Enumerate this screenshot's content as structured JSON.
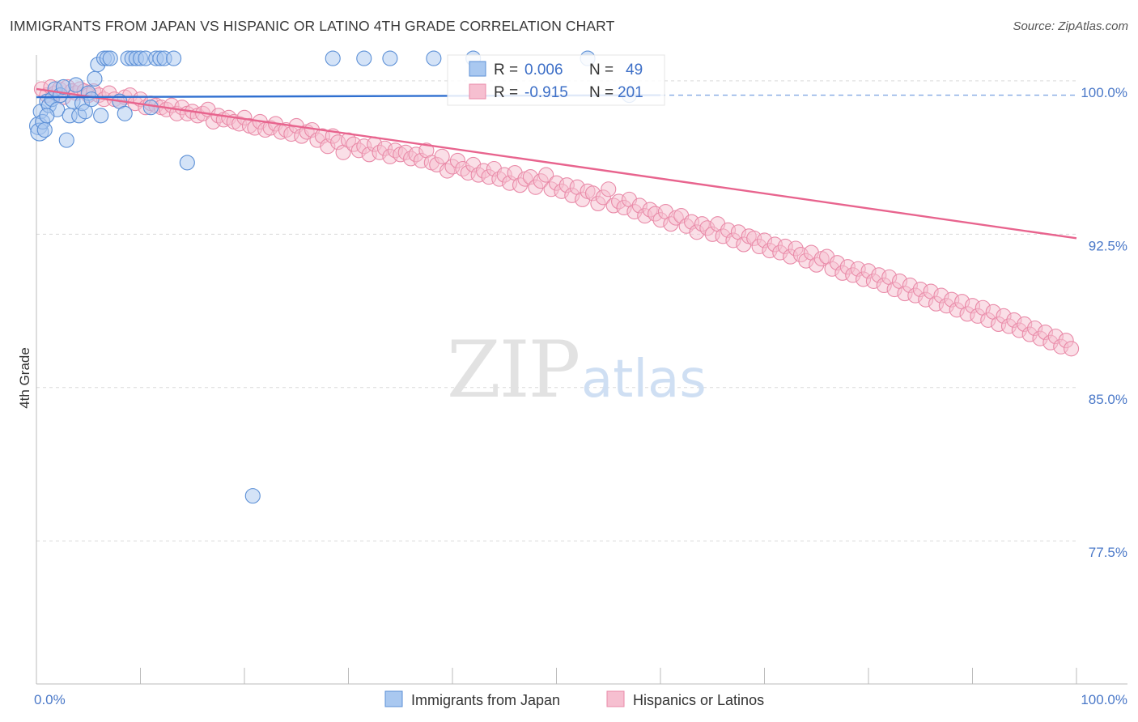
{
  "header": {
    "title": "IMMIGRANTS FROM JAPAN VS HISPANIC OR LATINO 4TH GRADE CORRELATION CHART",
    "source": "Source: ZipAtlas.com"
  },
  "watermark": {
    "part1": "ZIP",
    "part2": "atlas"
  },
  "colors": {
    "blue_fill": "#a9c8f0",
    "blue_stroke": "#5b8fd6",
    "blue_line": "#2f6fd0",
    "pink_fill": "#f6bfd0",
    "pink_stroke": "#e98aa8",
    "pink_line": "#e8648e",
    "tick_label": "#4a78c8",
    "grid": "#d9d9d9"
  },
  "stats_box": {
    "rows": [
      {
        "r_label": "R =",
        "r_value": "0.006",
        "n_label": "N =",
        "n_value": "49",
        "series": "blue"
      },
      {
        "r_label": "R =",
        "r_value": "-0.915",
        "n_label": "N =",
        "n_value": "201",
        "series": "pink"
      }
    ]
  },
  "legend": {
    "items": [
      {
        "label": "Immigrants from Japan",
        "series": "blue"
      },
      {
        "label": "Hispanics or Latinos",
        "series": "pink"
      }
    ]
  },
  "chart_data": {
    "type": "scatter",
    "ylabel": "4th Grade",
    "xlim": [
      0,
      100
    ],
    "ylim": [
      70.5,
      101.5
    ],
    "y_ticks": [
      {
        "value": 100.0,
        "label": "100.0%"
      },
      {
        "value": 92.5,
        "label": "92.5%"
      },
      {
        "value": 85.0,
        "label": "85.0%"
      },
      {
        "value": 77.5,
        "label": "77.5%"
      }
    ],
    "x_tick_labels": [
      {
        "value": 0,
        "label": "0.0%"
      },
      {
        "value": 100,
        "label": "100.0%"
      }
    ],
    "x_minor_ticks": [
      0,
      10,
      20,
      30,
      40,
      50,
      60,
      70,
      80,
      90,
      100
    ],
    "series": [
      {
        "name": "Immigrants from Japan",
        "color": "blue",
        "trend": {
          "x": [
            0,
            60
          ],
          "y": [
            99.2,
            99.3
          ],
          "dashed_extension_to": 100
        },
        "points": [
          [
            0.2,
            97.8
          ],
          [
            0.3,
            97.5
          ],
          [
            0.4,
            98.5
          ],
          [
            0.6,
            98.0
          ],
          [
            0.8,
            97.6
          ],
          [
            1.0,
            99.0
          ],
          [
            1.2,
            98.8
          ],
          [
            1.5,
            99.1
          ],
          [
            1.8,
            99.6
          ],
          [
            2.0,
            98.6
          ],
          [
            2.3,
            99.3
          ],
          [
            2.6,
            99.7
          ],
          [
            2.9,
            97.1
          ],
          [
            3.2,
            98.3
          ],
          [
            3.5,
            99.0
          ],
          [
            3.8,
            99.8
          ],
          [
            4.1,
            98.3
          ],
          [
            4.4,
            98.9
          ],
          [
            4.7,
            98.5
          ],
          [
            5.0,
            99.4
          ],
          [
            5.3,
            99.1
          ],
          [
            5.6,
            100.1
          ],
          [
            5.9,
            100.8
          ],
          [
            6.2,
            98.3
          ],
          [
            6.5,
            101.1
          ],
          [
            6.8,
            101.1
          ],
          [
            7.1,
            101.1
          ],
          [
            8.0,
            99.0
          ],
          [
            8.5,
            98.4
          ],
          [
            8.8,
            101.1
          ],
          [
            9.2,
            101.1
          ],
          [
            9.6,
            101.1
          ],
          [
            10.0,
            101.1
          ],
          [
            10.5,
            101.1
          ],
          [
            11.0,
            98.7
          ],
          [
            11.5,
            101.1
          ],
          [
            11.9,
            101.1
          ],
          [
            12.3,
            101.1
          ],
          [
            13.2,
            101.1
          ],
          [
            14.5,
            96.0
          ],
          [
            20.8,
            79.7
          ],
          [
            28.5,
            101.1
          ],
          [
            31.5,
            101.1
          ],
          [
            34.0,
            101.1
          ],
          [
            38.2,
            101.1
          ],
          [
            42.0,
            101.1
          ],
          [
            53.0,
            101.1
          ],
          [
            57.0,
            99.3
          ],
          [
            1.0,
            98.3
          ]
        ]
      },
      {
        "name": "Hispanics or Latinos",
        "color": "pink",
        "trend": {
          "x": [
            0,
            100
          ],
          "y": [
            99.6,
            92.3
          ]
        },
        "points": [
          [
            0.5,
            99.6
          ],
          [
            1.0,
            99.3
          ],
          [
            1.4,
            99.7
          ],
          [
            1.8,
            99.4
          ],
          [
            2.2,
            99.6
          ],
          [
            2.6,
            99.2
          ],
          [
            3.0,
            99.7
          ],
          [
            3.4,
            99.5
          ],
          [
            3.8,
            99.4
          ],
          [
            4.2,
            99.6
          ],
          [
            4.6,
            99.5
          ],
          [
            5.0,
            99.3
          ],
          [
            5.5,
            99.5
          ],
          [
            6.0,
            99.3
          ],
          [
            6.5,
            99.1
          ],
          [
            7.0,
            99.4
          ],
          [
            7.5,
            99.1
          ],
          [
            8.0,
            99.0
          ],
          [
            8.5,
            99.2
          ],
          [
            9.0,
            99.3
          ],
          [
            9.5,
            98.9
          ],
          [
            10.0,
            99.1
          ],
          [
            10.5,
            98.7
          ],
          [
            11.0,
            98.9
          ],
          [
            11.5,
            98.8
          ],
          [
            12.0,
            98.7
          ],
          [
            12.5,
            98.6
          ],
          [
            13.0,
            98.8
          ],
          [
            13.5,
            98.4
          ],
          [
            14.0,
            98.7
          ],
          [
            14.5,
            98.4
          ],
          [
            15.0,
            98.5
          ],
          [
            15.5,
            98.3
          ],
          [
            16.0,
            98.4
          ],
          [
            16.5,
            98.6
          ],
          [
            17.0,
            98.0
          ],
          [
            17.5,
            98.3
          ],
          [
            18.0,
            98.1
          ],
          [
            18.5,
            98.2
          ],
          [
            19.0,
            98.0
          ],
          [
            19.5,
            97.9
          ],
          [
            20.0,
            98.2
          ],
          [
            20.5,
            97.8
          ],
          [
            21.0,
            97.7
          ],
          [
            21.5,
            98.0
          ],
          [
            22.0,
            97.6
          ],
          [
            22.5,
            97.7
          ],
          [
            23.0,
            97.9
          ],
          [
            23.5,
            97.5
          ],
          [
            24.0,
            97.6
          ],
          [
            24.5,
            97.4
          ],
          [
            25.0,
            97.8
          ],
          [
            25.5,
            97.3
          ],
          [
            26.0,
            97.5
          ],
          [
            26.5,
            97.6
          ],
          [
            27.0,
            97.1
          ],
          [
            27.5,
            97.3
          ],
          [
            28.0,
            96.8
          ],
          [
            28.5,
            97.3
          ],
          [
            29.0,
            97.0
          ],
          [
            29.5,
            96.5
          ],
          [
            30.0,
            97.1
          ],
          [
            30.5,
            96.9
          ],
          [
            31.0,
            96.6
          ],
          [
            31.5,
            96.8
          ],
          [
            32.0,
            96.4
          ],
          [
            32.5,
            96.9
          ],
          [
            33.0,
            96.5
          ],
          [
            33.5,
            96.7
          ],
          [
            34.0,
            96.3
          ],
          [
            34.5,
            96.6
          ],
          [
            35.0,
            96.4
          ],
          [
            35.5,
            96.5
          ],
          [
            36.0,
            96.2
          ],
          [
            36.5,
            96.4
          ],
          [
            37.0,
            96.1
          ],
          [
            37.5,
            96.6
          ],
          [
            38.0,
            96.0
          ],
          [
            38.5,
            95.9
          ],
          [
            39.0,
            96.3
          ],
          [
            39.5,
            95.6
          ],
          [
            40.0,
            95.8
          ],
          [
            40.5,
            96.1
          ],
          [
            41.0,
            95.7
          ],
          [
            41.5,
            95.5
          ],
          [
            42.0,
            95.9
          ],
          [
            42.5,
            95.4
          ],
          [
            43.0,
            95.6
          ],
          [
            43.5,
            95.3
          ],
          [
            44.0,
            95.7
          ],
          [
            44.5,
            95.2
          ],
          [
            45.0,
            95.4
          ],
          [
            45.5,
            95.0
          ],
          [
            46.0,
            95.5
          ],
          [
            46.5,
            94.9
          ],
          [
            47.0,
            95.2
          ],
          [
            47.5,
            95.3
          ],
          [
            48.0,
            94.8
          ],
          [
            48.5,
            95.1
          ],
          [
            49.0,
            95.4
          ],
          [
            49.5,
            94.7
          ],
          [
            50.0,
            95.0
          ],
          [
            50.5,
            94.6
          ],
          [
            51.0,
            94.9
          ],
          [
            51.5,
            94.4
          ],
          [
            52.0,
            94.8
          ],
          [
            52.5,
            94.2
          ],
          [
            53.0,
            94.6
          ],
          [
            53.5,
            94.5
          ],
          [
            54.0,
            94.0
          ],
          [
            54.5,
            94.3
          ],
          [
            55.0,
            94.7
          ],
          [
            55.5,
            93.9
          ],
          [
            56.0,
            94.1
          ],
          [
            56.5,
            93.8
          ],
          [
            57.0,
            94.2
          ],
          [
            57.5,
            93.6
          ],
          [
            58.0,
            93.9
          ],
          [
            58.5,
            93.4
          ],
          [
            59.0,
            93.7
          ],
          [
            59.5,
            93.5
          ],
          [
            60.0,
            93.2
          ],
          [
            60.5,
            93.6
          ],
          [
            61.0,
            93.0
          ],
          [
            61.5,
            93.3
          ],
          [
            62.0,
            93.4
          ],
          [
            62.5,
            92.9
          ],
          [
            63.0,
            93.1
          ],
          [
            63.5,
            92.6
          ],
          [
            64.0,
            93.0
          ],
          [
            64.5,
            92.8
          ],
          [
            65.0,
            92.5
          ],
          [
            65.5,
            93.0
          ],
          [
            66.0,
            92.4
          ],
          [
            66.5,
            92.7
          ],
          [
            67.0,
            92.2
          ],
          [
            67.5,
            92.6
          ],
          [
            68.0,
            92.0
          ],
          [
            68.5,
            92.4
          ],
          [
            69.0,
            92.3
          ],
          [
            69.5,
            91.9
          ],
          [
            70.0,
            92.2
          ],
          [
            70.5,
            91.7
          ],
          [
            71.0,
            92.0
          ],
          [
            71.5,
            91.6
          ],
          [
            72.0,
            91.9
          ],
          [
            72.5,
            91.4
          ],
          [
            73.0,
            91.8
          ],
          [
            73.5,
            91.5
          ],
          [
            74.0,
            91.2
          ],
          [
            74.5,
            91.6
          ],
          [
            75.0,
            91.0
          ],
          [
            75.5,
            91.3
          ],
          [
            76.0,
            91.4
          ],
          [
            76.5,
            90.8
          ],
          [
            77.0,
            91.1
          ],
          [
            77.5,
            90.6
          ],
          [
            78.0,
            90.9
          ],
          [
            78.5,
            90.5
          ],
          [
            79.0,
            90.8
          ],
          [
            79.5,
            90.3
          ],
          [
            80.0,
            90.7
          ],
          [
            80.5,
            90.2
          ],
          [
            81.0,
            90.5
          ],
          [
            81.5,
            90.0
          ],
          [
            82.0,
            90.4
          ],
          [
            82.5,
            89.8
          ],
          [
            83.0,
            90.2
          ],
          [
            83.5,
            89.6
          ],
          [
            84.0,
            90.0
          ],
          [
            84.5,
            89.5
          ],
          [
            85.0,
            89.8
          ],
          [
            85.5,
            89.3
          ],
          [
            86.0,
            89.7
          ],
          [
            86.5,
            89.1
          ],
          [
            87.0,
            89.5
          ],
          [
            87.5,
            89.0
          ],
          [
            88.0,
            89.3
          ],
          [
            88.5,
            88.8
          ],
          [
            89.0,
            89.2
          ],
          [
            89.5,
            88.6
          ],
          [
            90.0,
            89.0
          ],
          [
            90.5,
            88.5
          ],
          [
            91.0,
            88.9
          ],
          [
            91.5,
            88.3
          ],
          [
            92.0,
            88.7
          ],
          [
            92.5,
            88.1
          ],
          [
            93.0,
            88.5
          ],
          [
            93.5,
            88.0
          ],
          [
            94.0,
            88.3
          ],
          [
            94.5,
            87.8
          ],
          [
            95.0,
            88.1
          ],
          [
            95.5,
            87.6
          ],
          [
            96.0,
            87.9
          ],
          [
            96.5,
            87.4
          ],
          [
            97.0,
            87.7
          ],
          [
            97.5,
            87.2
          ],
          [
            98.0,
            87.5
          ],
          [
            98.5,
            87.0
          ],
          [
            99.0,
            87.3
          ],
          [
            99.5,
            86.9
          ]
        ]
      }
    ]
  }
}
